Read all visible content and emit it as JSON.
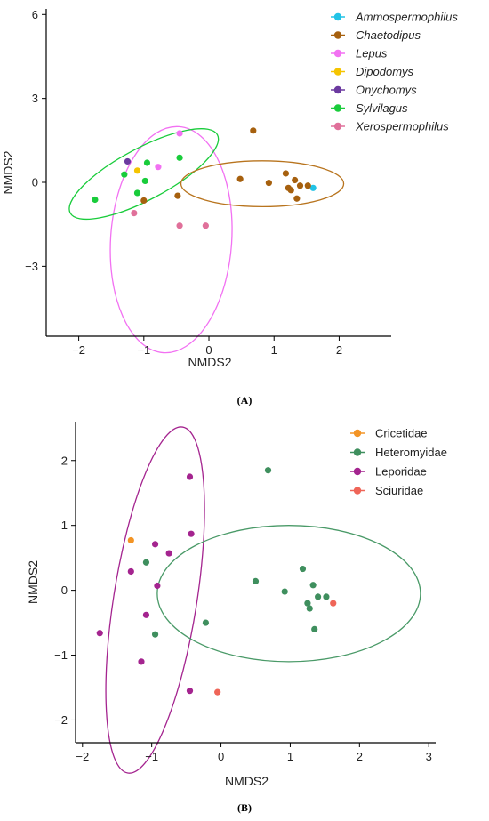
{
  "chart_data": [
    {
      "type": "scatter",
      "panel_label": "(A)",
      "xlabel": "NMDS2",
      "ylabel": "NMDS2",
      "xlim": [
        -2.5,
        2.8
      ],
      "ylim": [
        -5.5,
        6.2
      ],
      "xticks": [
        -2,
        -1,
        0,
        1,
        2
      ],
      "yticks": [
        -3,
        0,
        3,
        6
      ],
      "grid": false,
      "legend_position": "top-right",
      "legend_italic": true,
      "series": [
        {
          "name": "Ammospermophilus",
          "color": "#22c3e6",
          "points": [
            [
              1.6,
              -0.2
            ]
          ]
        },
        {
          "name": "Chaetodipus",
          "color": "#a6600e",
          "points": [
            [
              0.68,
              1.85
            ],
            [
              0.48,
              0.12
            ],
            [
              1.18,
              0.32
            ],
            [
              1.32,
              0.08
            ],
            [
              1.22,
              -0.2
            ],
            [
              1.26,
              -0.28
            ],
            [
              1.4,
              -0.12
            ],
            [
              1.52,
              -0.12
            ],
            [
              1.35,
              -0.58
            ],
            [
              0.92,
              -0.02
            ],
            [
              -0.48,
              -0.48
            ],
            [
              -1.0,
              -0.65
            ]
          ]
        },
        {
          "name": "Lepus",
          "color": "#f271f2",
          "points": [
            [
              -0.45,
              1.75
            ],
            [
              -0.78,
              0.55
            ]
          ]
        },
        {
          "name": "Dipodomys",
          "color": "#f5c400",
          "points": [
            [
              -1.1,
              0.42
            ]
          ]
        },
        {
          "name": "Onychomys",
          "color": "#6c3aa0",
          "points": [
            [
              -1.25,
              0.75
            ]
          ]
        },
        {
          "name": "Sylvilagus",
          "color": "#19cc3b",
          "points": [
            [
              -1.75,
              -0.62
            ],
            [
              -1.3,
              0.28
            ],
            [
              -0.95,
              0.7
            ],
            [
              -0.45,
              0.88
            ],
            [
              -0.98,
              0.05
            ],
            [
              -1.1,
              -0.38
            ]
          ]
        },
        {
          "name": "Xerospermophilus",
          "color": "#e0709a",
          "points": [
            [
              -0.45,
              -1.55
            ],
            [
              -0.05,
              -1.55
            ],
            [
              -1.15,
              -1.1
            ]
          ]
        }
      ],
      "ellipses": [
        {
          "color": "#f271f2",
          "center": [
            -0.58,
            -2.05
          ],
          "rx": 0.93,
          "ry": 4.05,
          "rotation_deg": 4
        },
        {
          "color": "#19cc3b",
          "center": [
            -1.0,
            0.3
          ],
          "rx": 1.28,
          "ry": 0.92,
          "rotation_deg": -28
        },
        {
          "color": "#b8741e",
          "center": [
            0.82,
            -0.05
          ],
          "rx": 1.25,
          "ry": 0.82,
          "rotation_deg": 0
        }
      ]
    },
    {
      "type": "scatter",
      "panel_label": "(B)",
      "xlabel": "NMDS2",
      "ylabel": "NMDS2",
      "xlim": [
        -2.1,
        3.1
      ],
      "ylim": [
        -2.35,
        2.6
      ],
      "xticks": [
        -2,
        -1,
        0,
        1,
        2,
        3
      ],
      "yticks": [
        -2,
        -1,
        0,
        1,
        2
      ],
      "grid": false,
      "legend_position": "top-right",
      "legend_italic": false,
      "series": [
        {
          "name": "Cricetidae",
          "color": "#f39425",
          "points": [
            [
              -1.3,
              0.77
            ]
          ]
        },
        {
          "name": "Heteromyidae",
          "color": "#3f8f5e",
          "points": [
            [
              0.68,
              1.85
            ],
            [
              0.5,
              0.14
            ],
            [
              0.92,
              -0.02
            ],
            [
              1.18,
              0.33
            ],
            [
              1.33,
              0.08
            ],
            [
              1.4,
              -0.1
            ],
            [
              1.25,
              -0.2
            ],
            [
              1.28,
              -0.28
            ],
            [
              1.52,
              -0.1
            ],
            [
              1.35,
              -0.6
            ],
            [
              -1.08,
              0.43
            ],
            [
              -0.95,
              -0.68
            ],
            [
              -0.22,
              -0.5
            ]
          ]
        },
        {
          "name": "Leporidae",
          "color": "#a4248f",
          "points": [
            [
              -0.45,
              1.75
            ],
            [
              -0.95,
              0.71
            ],
            [
              -0.43,
              0.87
            ],
            [
              -0.75,
              0.57
            ],
            [
              -1.3,
              0.29
            ],
            [
              -0.92,
              0.07
            ],
            [
              -1.08,
              -0.38
            ],
            [
              -1.75,
              -0.66
            ],
            [
              -1.15,
              -1.1
            ],
            [
              -0.45,
              -1.55
            ]
          ]
        },
        {
          "name": "Sciuridae",
          "color": "#ef6558",
          "points": [
            [
              1.62,
              -0.2
            ],
            [
              -0.05,
              -1.57
            ]
          ]
        }
      ],
      "ellipses": [
        {
          "color": "#a4248f",
          "center": [
            -0.95,
            -0.15
          ],
          "rx": 0.6,
          "ry": 2.7,
          "rotation_deg": 9
        },
        {
          "color": "#4a9a68",
          "center": [
            0.98,
            -0.05
          ],
          "rx": 1.9,
          "ry": 1.05,
          "rotation_deg": 0
        }
      ]
    }
  ]
}
